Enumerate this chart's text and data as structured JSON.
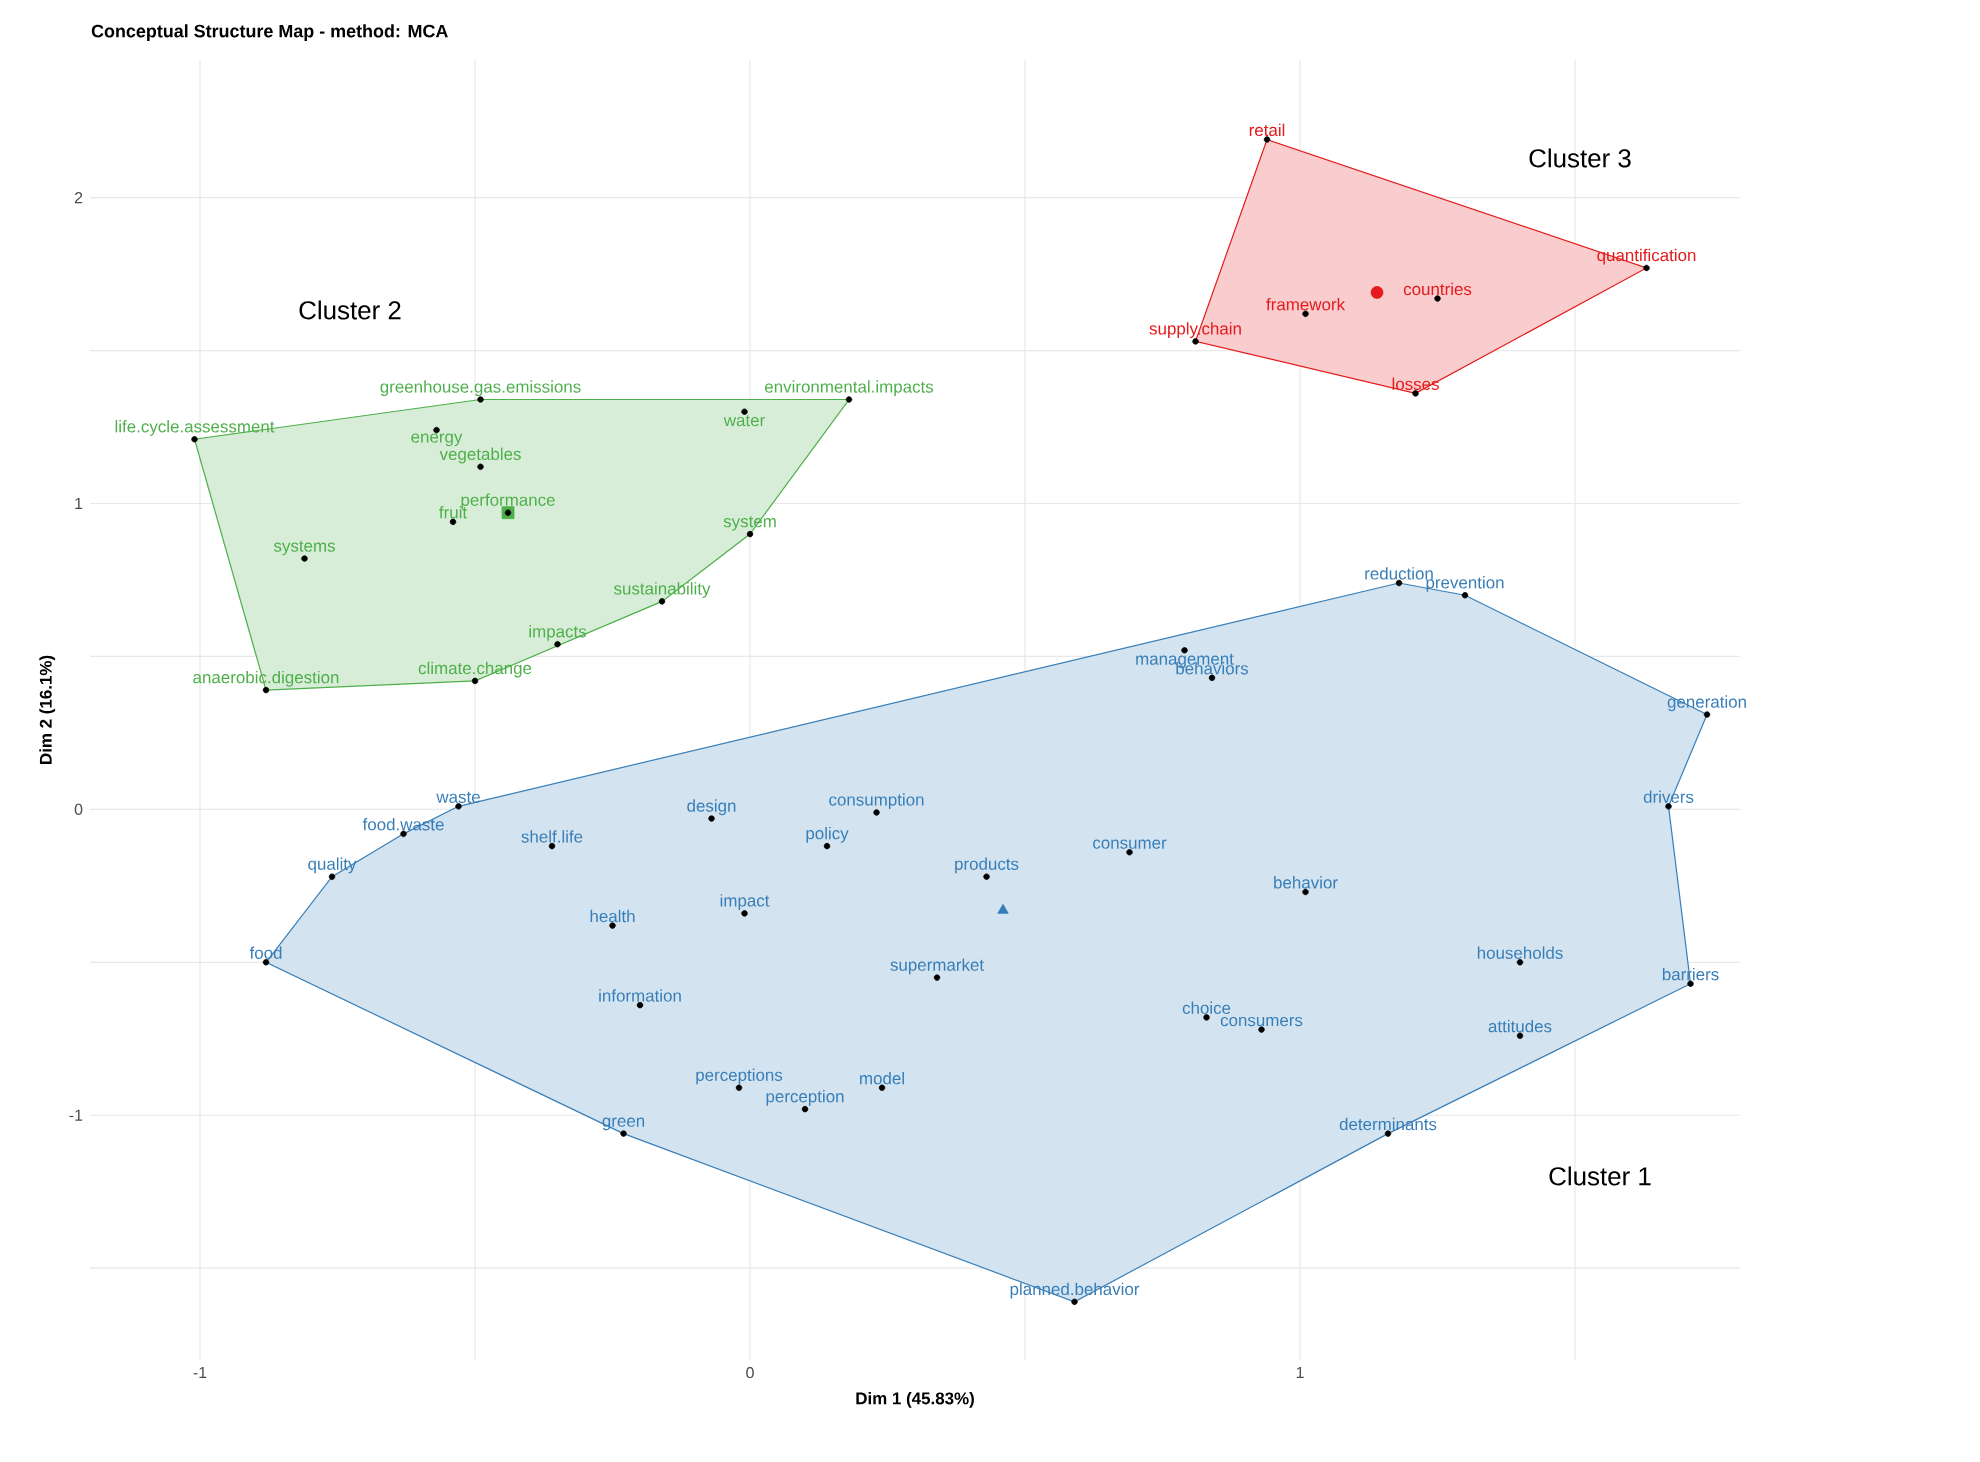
{
  "chart_data": {
    "type": "scatter",
    "title": "Conceptual Structure Map - method: MCA",
    "xlabel": "Dim 1 (45.83%)",
    "ylabel": "Dim 2 (16.1%)",
    "xlim": [
      -1.2,
      1.8
    ],
    "ylim": [
      -1.8,
      2.45
    ],
    "xticks": [
      -1,
      {
        "value": -0.5,
        "label": null
      },
      0,
      {
        "value": 0.5,
        "label": null
      },
      1,
      {
        "value": 1.5,
        "label": null
      }
    ],
    "yticks": [
      {
        "value": -1.5,
        "label": null
      },
      -1,
      {
        "value": -0.5,
        "label": null
      },
      0,
      {
        "value": 0.5,
        "label": null
      },
      1,
      {
        "value": 1.5,
        "label": null
      },
      2
    ],
    "grid": true,
    "series": [
      {
        "type": "area",
        "color": "#377eb8",
        "x": [
          -0.88,
          -0.76,
          -0.63,
          -0.53,
          1.18,
          1.3,
          1.74,
          1.67,
          1.71,
          1.16,
          0.59,
          -0.23
        ],
        "values": [
          -0.5,
          -0.22,
          -0.08,
          0.01,
          0.74,
          0.7,
          0.31,
          0.01,
          -0.57,
          -1.06,
          -1.61,
          -1.06
        ]
      },
      {
        "color": "#377eb8",
        "marker": "triangle",
        "x": [
          0.46
        ],
        "values": [
          -0.33
        ]
      },
      {
        "color": "#000000",
        "marker": "circle",
        "x": [
          1.18,
          1.3,
          1.74,
          1.67,
          1.71,
          1.4,
          1.4,
          1.16,
          0.59,
          1.01,
          0.93,
          0.83,
          0.69,
          0.79,
          0.84,
          0.43,
          0.34,
          0.24,
          0.1,
          -0.02,
          -0.23,
          -0.2,
          -0.25,
          -0.01,
          0.14,
          0.23,
          -0.07,
          -0.36,
          -0.53,
          -0.63,
          -0.76,
          -0.88
        ],
        "values": [
          0.74,
          0.7,
          0.31,
          0.01,
          -0.57,
          -0.74,
          -0.5,
          -1.06,
          -1.61,
          -0.27,
          -0.72,
          -0.68,
          -0.14,
          0.52,
          0.43,
          -0.22,
          -0.55,
          -0.91,
          -0.98,
          -0.91,
          -1.06,
          -0.64,
          -0.38,
          -0.34,
          -0.12,
          -0.01,
          -0.03,
          -0.12,
          0.01,
          -0.08,
          -0.22,
          -0.5
        ],
        "value_labels": [
          "reduction",
          "prevention",
          "generation",
          "drivers",
          "barriers",
          "attitudes",
          "households",
          "determinants",
          "planned.behavior",
          "behavior",
          "consumers",
          "choice",
          "consumer",
          "management",
          "behaviors",
          "products",
          "supermarket",
          "model",
          "perception",
          "perceptions",
          "green",
          "information",
          "health",
          "impact",
          "policy",
          "consumption",
          "design",
          "shelf.life",
          "waste",
          "food.waste",
          "quality",
          "food"
        ]
      },
      {
        "type": "area",
        "color": "#4daf4a",
        "x": [
          -1.01,
          -0.49,
          0.18,
          0.0,
          -0.16,
          -0.5,
          -0.88
        ],
        "values": [
          1.21,
          1.34,
          1.34,
          0.9,
          0.68,
          0.42,
          0.39
        ]
      },
      {
        "color": "#4daf4a",
        "marker": "square",
        "x": [
          -0.44
        ],
        "values": [
          0.97
        ]
      },
      {
        "color": "#000000",
        "marker": "circle",
        "x": [
          -0.49,
          0.18,
          -1.01,
          -0.57,
          -0.01,
          -0.49,
          -0.44,
          -0.54,
          -0.81,
          0.0,
          -0.16,
          -0.35,
          -0.5,
          -0.88
        ],
        "values": [
          1.34,
          1.34,
          1.21,
          1.24,
          1.3,
          1.12,
          0.97,
          0.94,
          0.82,
          0.9,
          0.68,
          0.54,
          0.42,
          0.39
        ],
        "value_labels": [
          "greenhouse.gas.emissions",
          "environmental.impacts",
          "life.cycle.assessment",
          "energy",
          "water",
          "vegetables",
          "performance",
          "fruit",
          "systems",
          "system",
          "sustainability",
          "impacts",
          "climate.change",
          "anaerobic.digestion"
        ]
      },
      {
        "type": "area",
        "color": "#e41a1c",
        "x": [
          0.94,
          1.63,
          1.21,
          0.81
        ],
        "values": [
          2.19,
          1.77,
          1.36,
          1.53
        ]
      },
      {
        "color": "#e41a1c",
        "marker": "circle",
        "x": [
          1.14
        ],
        "values": [
          1.69
        ]
      },
      {
        "color": "#000000",
        "marker": "circle",
        "x": [
          0.94,
          1.63,
          1.21,
          0.81,
          1.01,
          1.25
        ],
        "values": [
          2.19,
          1.77,
          1.36,
          1.53,
          1.62,
          1.67
        ],
        "value_labels": [
          "retail",
          "quantification",
          "losses",
          "supply.chain",
          "framework",
          "countries"
        ]
      }
    ],
    "annotations": [
      "Cluster 1",
      "Cluster 2",
      "Cluster 3"
    ]
  }
}
